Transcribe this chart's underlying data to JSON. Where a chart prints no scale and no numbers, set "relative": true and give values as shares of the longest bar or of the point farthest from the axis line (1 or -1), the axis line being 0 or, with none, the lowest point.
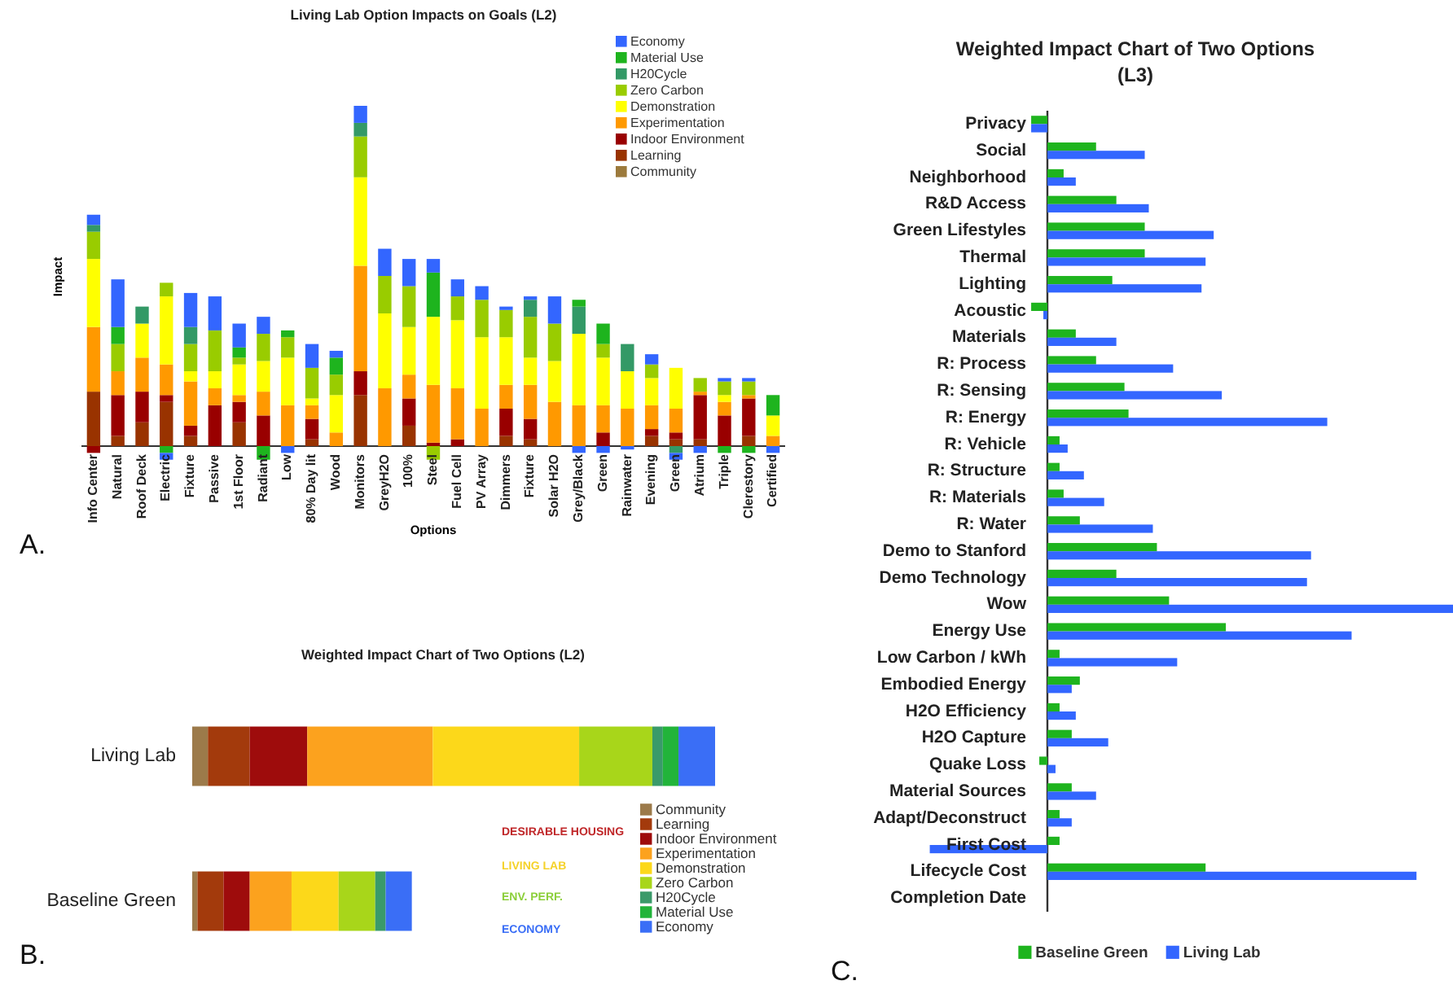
{
  "chart_data": [
    {
      "type": "bar",
      "stacked": true,
      "relative": true,
      "title": "Living Lab Option Impacts on Goals (L2)",
      "xlabel": "Options",
      "ylabel": "Impact",
      "legend": "top right",
      "annotations": [
        "A."
      ],
      "categories": [
        "Info Center",
        "Natural",
        "Roof Deck",
        "Electric",
        "Fixture",
        "Passive",
        "1st Floor",
        "Radiant",
        "Low",
        "80% Day lit",
        "Wood",
        "Monitors",
        "GreyH2O",
        "100%",
        "Steel",
        "Fuel Cell",
        "PV Array",
        "Dimmers",
        "Fixture",
        "Solar H2O",
        "Grey/Black",
        "Green",
        "Rainwater",
        "Evening",
        "Green",
        "Atrium",
        "Triple",
        "Clerestory",
        "Certified"
      ],
      "series": [
        {
          "name": "Community",
          "color": "#9c7a3c",
          "values": [
            null,
            null,
            null,
            null,
            null,
            null,
            null,
            null,
            null,
            null,
            null,
            null,
            null,
            null,
            null,
            null,
            null,
            null,
            null,
            null,
            null,
            null,
            null,
            null,
            null,
            null,
            null,
            null,
            null
          ]
        },
        {
          "name": "Learning",
          "color": "#993300",
          "values": [
            0.16,
            0.03,
            0.07,
            0.13,
            0.03,
            null,
            0.07,
            null,
            null,
            0.02,
            null,
            0.15,
            null,
            0.06,
            null,
            null,
            null,
            0.03,
            0.02,
            null,
            null,
            null,
            null,
            0.03,
            0.02,
            0.02,
            null,
            0.03,
            null
          ]
        },
        {
          "name": "Indoor Environment",
          "color": "#990000",
          "values": [
            -0.02,
            0.12,
            0.09,
            0.02,
            0.03,
            0.12,
            0.06,
            0.09,
            null,
            0.06,
            null,
            0.07,
            null,
            0.08,
            0.01,
            0.02,
            null,
            0.08,
            0.06,
            null,
            null,
            0.04,
            null,
            0.02,
            0.02,
            0.13,
            0.09,
            0.11,
            null
          ]
        },
        {
          "name": "Experimentation",
          "color": "#ff9900",
          "values": [
            0.19,
            0.07,
            0.1,
            0.09,
            0.13,
            0.05,
            0.02,
            0.07,
            0.12,
            0.04,
            0.04,
            0.31,
            0.17,
            0.07,
            0.17,
            0.15,
            0.11,
            0.07,
            0.1,
            0.13,
            0.12,
            0.08,
            0.11,
            0.07,
            0.07,
            0.01,
            0.04,
            0.01,
            0.03
          ]
        },
        {
          "name": "Demonstration",
          "color": "#ffff00",
          "values": [
            0.2,
            null,
            0.1,
            0.2,
            0.03,
            0.05,
            0.09,
            0.09,
            0.14,
            0.02,
            0.11,
            0.26,
            0.22,
            0.14,
            0.2,
            0.2,
            0.21,
            0.14,
            0.08,
            0.12,
            0.21,
            0.14,
            0.11,
            0.08,
            0.12,
            null,
            0.02,
            null,
            0.06
          ]
        },
        {
          "name": "Zero Carbon",
          "color": "#99cc00",
          "values": [
            0.08,
            0.08,
            null,
            0.04,
            0.08,
            0.12,
            0.02,
            0.08,
            0.06,
            0.09,
            0.06,
            0.12,
            0.11,
            0.12,
            -0.04,
            0.07,
            0.11,
            0.08,
            0.12,
            0.11,
            null,
            0.04,
            null,
            0.04,
            null,
            0.04,
            0.04,
            0.04,
            null
          ]
        },
        {
          "name": "H20Cycle",
          "color": "#339966",
          "values": [
            0.02,
            null,
            0.05,
            null,
            0.05,
            null,
            null,
            null,
            null,
            null,
            null,
            0.04,
            null,
            null,
            null,
            null,
            null,
            null,
            0.05,
            null,
            0.08,
            null,
            0.08,
            null,
            -0.02,
            null,
            null,
            null,
            null
          ]
        },
        {
          "name": "Material Use",
          "color": "#1eb41e",
          "values": [
            null,
            0.05,
            null,
            -0.02,
            null,
            null,
            0.03,
            -0.04,
            0.02,
            null,
            0.05,
            null,
            null,
            null,
            0.13,
            null,
            null,
            null,
            null,
            null,
            0.02,
            0.06,
            null,
            null,
            null,
            null,
            -0.02,
            -0.02,
            0.06
          ]
        },
        {
          "name": "Economy",
          "color": "#3366ff",
          "values": [
            0.03,
            0.14,
            null,
            -0.02,
            0.1,
            0.1,
            0.07,
            0.05,
            -0.02,
            0.07,
            0.02,
            0.05,
            0.08,
            0.08,
            0.04,
            0.05,
            0.04,
            0.01,
            0.01,
            0.08,
            -0.02,
            -0.02,
            -0.01,
            0.03,
            -0.02,
            -0.02,
            0.01,
            0.01,
            -0.02
          ]
        }
      ]
    },
    {
      "type": "bar",
      "stacked": true,
      "orientation": "horizontal",
      "relative": true,
      "title": "Weighted Impact Chart of Two Options (L2)",
      "legend": "bottom right",
      "annotations": [
        "DESIRABLE HOUSING",
        "LIVING LAB",
        "ENV. PERF.",
        "ECONOMY",
        "B."
      ],
      "categories": [
        "Living Lab",
        "Baseline Green"
      ],
      "series": [
        {
          "name": "Community",
          "color": "#9c7a4a",
          "values": [
            0.03,
            0.01
          ]
        },
        {
          "name": "Learning",
          "color": "#a33a0c",
          "values": [
            0.08,
            0.05
          ]
        },
        {
          "name": "Indoor Environment",
          "color": "#9e0c0c",
          "values": [
            0.11,
            0.05
          ]
        },
        {
          "name": "Experimentation",
          "color": "#fca21e",
          "values": [
            0.24,
            0.08
          ]
        },
        {
          "name": "Demonstration",
          "color": "#fcd81a",
          "values": [
            0.28,
            0.09
          ]
        },
        {
          "name": "Zero Carbon",
          "color": "#a8d61a",
          "values": [
            0.14,
            0.07
          ]
        },
        {
          "name": "H20Cycle",
          "color": "#3a9a6a",
          "values": [
            0.02,
            0.02
          ]
        },
        {
          "name": "Material Use",
          "color": "#22b43a",
          "values": [
            0.03,
            null
          ]
        },
        {
          "name": "Economy",
          "color": "#3a6ef6",
          "values": [
            0.07,
            0.05
          ]
        }
      ]
    },
    {
      "type": "bar",
      "orientation": "horizontal",
      "relative": true,
      "title": "Weighted Impact Chart of Two Options (L3)",
      "legend": "bottom",
      "annotations": [
        "C."
      ],
      "categories": [
        "Privacy",
        "Social",
        "Neighborhood",
        "R&D Access",
        "Green Lifestyles",
        "Thermal",
        "Lighting",
        "Acoustic",
        "Materials",
        "R: Process",
        "R: Sensing",
        "R: Energy",
        "R: Vehicle",
        "R: Structure",
        "R: Materials",
        "R: Water",
        "Demo to Stanford",
        "Demo Technology",
        "Wow",
        "Energy Use",
        "Low Carbon / kWh",
        "Embodied Energy",
        "H2O Efficiency",
        "H2O Capture",
        "Quake Loss",
        "Material Sources",
        "Adapt/Deconstruct",
        "First Cost",
        "Lifecycle Cost",
        "Completion Date"
      ],
      "series": [
        {
          "name": "Baseline Green",
          "color": "#1eb41e",
          "values": [
            -0.04,
            0.12,
            0.04,
            0.17,
            0.24,
            0.24,
            0.16,
            -0.04,
            0.07,
            0.12,
            0.19,
            0.2,
            0.03,
            0.03,
            0.04,
            0.08,
            0.27,
            0.17,
            0.3,
            0.44,
            0.03,
            0.08,
            0.03,
            0.06,
            -0.02,
            0.06,
            0.03,
            0.03,
            0.39,
            null
          ]
        },
        {
          "name": "Living Lab",
          "color": "#3366ff",
          "values": [
            -0.04,
            0.24,
            0.07,
            0.25,
            0.41,
            0.39,
            0.38,
            -0.01,
            0.17,
            0.31,
            0.43,
            0.69,
            0.05,
            0.09,
            0.14,
            0.26,
            0.65,
            0.64,
            1,
            0.75,
            0.32,
            0.06,
            0.07,
            0.15,
            0.02,
            0.12,
            0.06,
            -0.29,
            0.91,
            null
          ]
        }
      ]
    }
  ]
}
